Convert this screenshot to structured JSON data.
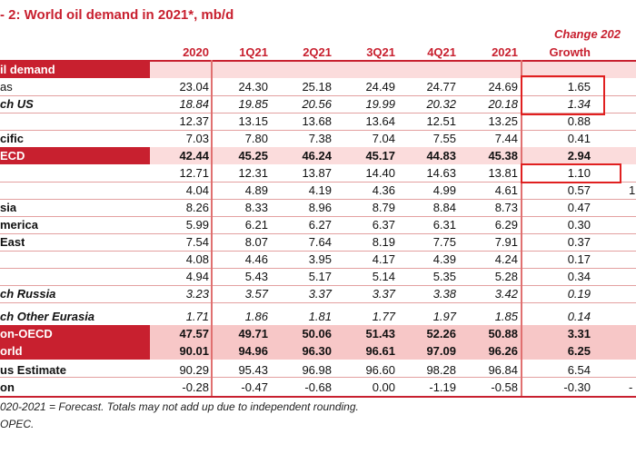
{
  "title": "- 2: World oil demand in 2021*, mb/d",
  "change_header": "Change 202",
  "columns": [
    "2020",
    "1Q21",
    "2Q21",
    "3Q21",
    "4Q21",
    "2021",
    "Growth"
  ],
  "rows": [
    {
      "label": "il demand",
      "values": [
        "",
        "",
        "",
        "",
        "",
        "",
        ""
      ]
    },
    {
      "label": "as",
      "values": [
        "23.04",
        "24.30",
        "25.18",
        "24.49",
        "24.77",
        "24.69",
        "1.65"
      ]
    },
    {
      "label": "ch US",
      "values": [
        "18.84",
        "19.85",
        "20.56",
        "19.99",
        "20.32",
        "20.18",
        "1.34"
      ]
    },
    {
      "label": "",
      "values": [
        "12.37",
        "13.15",
        "13.68",
        "13.64",
        "12.51",
        "13.25",
        "0.88"
      ]
    },
    {
      "label": "cific",
      "values": [
        "7.03",
        "7.80",
        "7.38",
        "7.04",
        "7.55",
        "7.44",
        "0.41"
      ]
    },
    {
      "label": "ECD",
      "values": [
        "42.44",
        "45.25",
        "46.24",
        "45.17",
        "44.83",
        "45.38",
        "2.94"
      ]
    },
    {
      "label": "",
      "values": [
        "12.71",
        "12.31",
        "13.87",
        "14.40",
        "14.63",
        "13.81",
        "1.10"
      ]
    },
    {
      "label": "",
      "values": [
        "4.04",
        "4.89",
        "4.19",
        "4.36",
        "4.99",
        "4.61",
        "0.57"
      ],
      "extra": "1"
    },
    {
      "label": "sia",
      "values": [
        "8.26",
        "8.33",
        "8.96",
        "8.79",
        "8.84",
        "8.73",
        "0.47"
      ]
    },
    {
      "label": "merica",
      "values": [
        "5.99",
        "6.21",
        "6.27",
        "6.37",
        "6.31",
        "6.29",
        "0.30"
      ]
    },
    {
      "label": "East",
      "values": [
        "7.54",
        "8.07",
        "7.64",
        "8.19",
        "7.75",
        "7.91",
        "0.37"
      ]
    },
    {
      "label": "",
      "values": [
        "4.08",
        "4.46",
        "3.95",
        "4.17",
        "4.39",
        "4.24",
        "0.17"
      ]
    },
    {
      "label": "",
      "values": [
        "4.94",
        "5.43",
        "5.17",
        "5.14",
        "5.35",
        "5.28",
        "0.34"
      ]
    },
    {
      "label": "ch Russia",
      "values": [
        "3.23",
        "3.57",
        "3.37",
        "3.37",
        "3.38",
        "3.42",
        "0.19"
      ]
    },
    {
      "label": "ch Other Eurasia",
      "values": [
        "1.71",
        "1.86",
        "1.81",
        "1.77",
        "1.97",
        "1.85",
        "0.14"
      ]
    },
    {
      "label": "on-OECD",
      "values": [
        "47.57",
        "49.71",
        "50.06",
        "51.43",
        "52.26",
        "50.88",
        "3.31"
      ]
    },
    {
      "label": "orld",
      "values": [
        "90.01",
        "94.96",
        "96.30",
        "96.61",
        "97.09",
        "96.26",
        "6.25"
      ]
    },
    {
      "label": "us Estimate",
      "values": [
        "90.29",
        "95.43",
        "96.98",
        "96.60",
        "98.28",
        "96.84",
        "6.54"
      ]
    },
    {
      "label": "on",
      "values": [
        "-0.28",
        "-0.47",
        "-0.68",
        "0.00",
        "-1.19",
        "-0.58",
        "-0.30"
      ],
      "extra": "-"
    }
  ],
  "notes": [
    "020-2021 = Forecast. Totals may not add up due to independent rounding.",
    "OPEC."
  ]
}
